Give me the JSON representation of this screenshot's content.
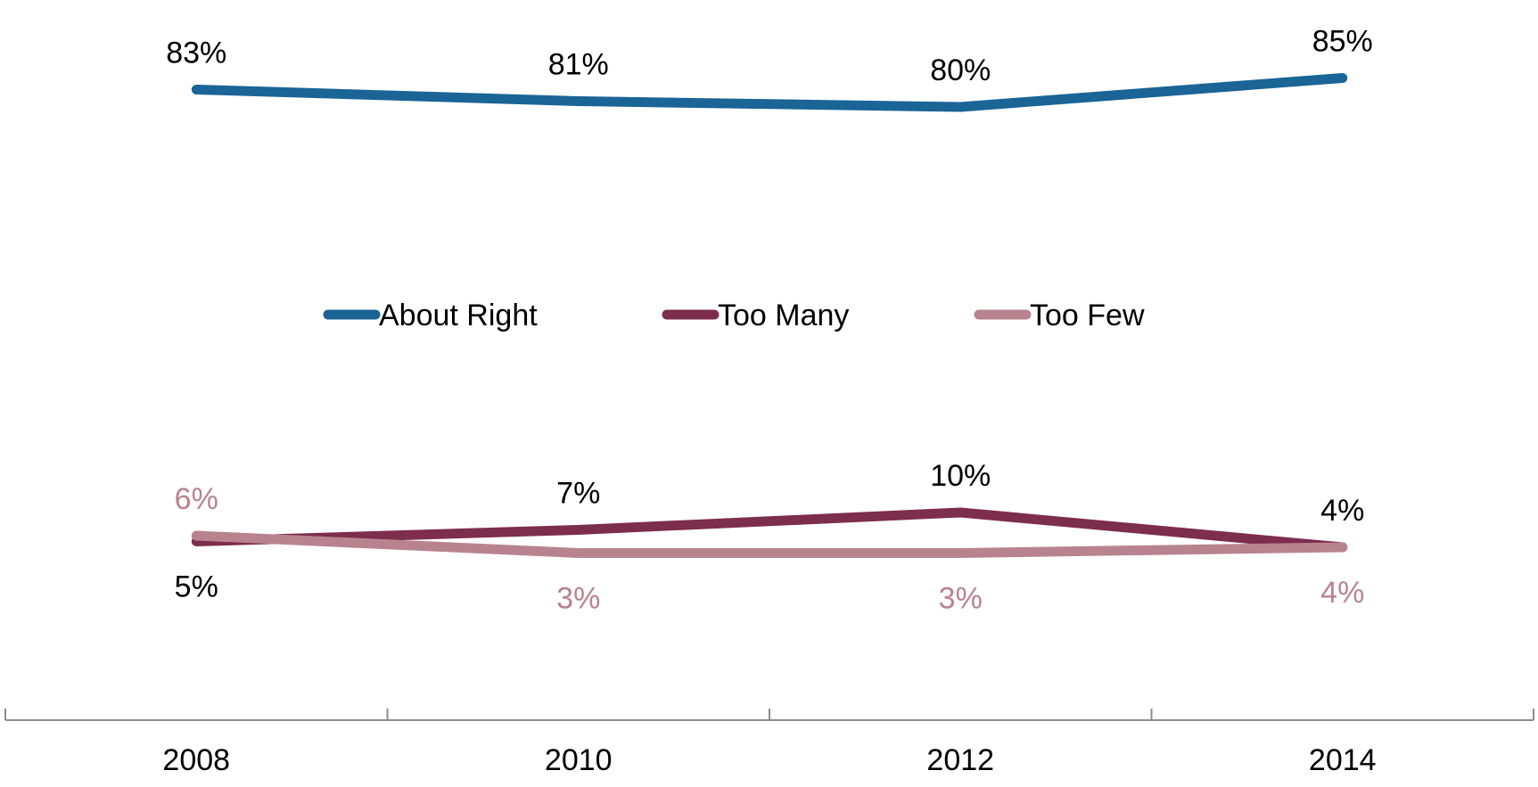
{
  "chart_data": {
    "type": "line",
    "x": [
      "2008",
      "2010",
      "2012",
      "2014"
    ],
    "series": [
      {
        "name": "About Right",
        "values": [
          83,
          81,
          80,
          85
        ],
        "labels": [
          "83%",
          "81%",
          "80%",
          "85%"
        ],
        "color": "#1a6496",
        "label_color": "#000000"
      },
      {
        "name": "Too Many",
        "values": [
          5,
          7,
          10,
          4
        ],
        "labels": [
          "5%",
          "7%",
          "10%",
          "4%"
        ],
        "color": "#7d2e4c",
        "label_color": "#000000"
      },
      {
        "name": "Too Few",
        "values": [
          6,
          3,
          3,
          4
        ],
        "labels": [
          "6%",
          "3%",
          "3%",
          "4%"
        ],
        "color": "#b8838f",
        "label_color": "#b8838f"
      }
    ],
    "ylim": [
      -10,
      90
    ],
    "grid": false,
    "legend": "center",
    "title": "",
    "xlabel": "",
    "ylabel": ""
  }
}
